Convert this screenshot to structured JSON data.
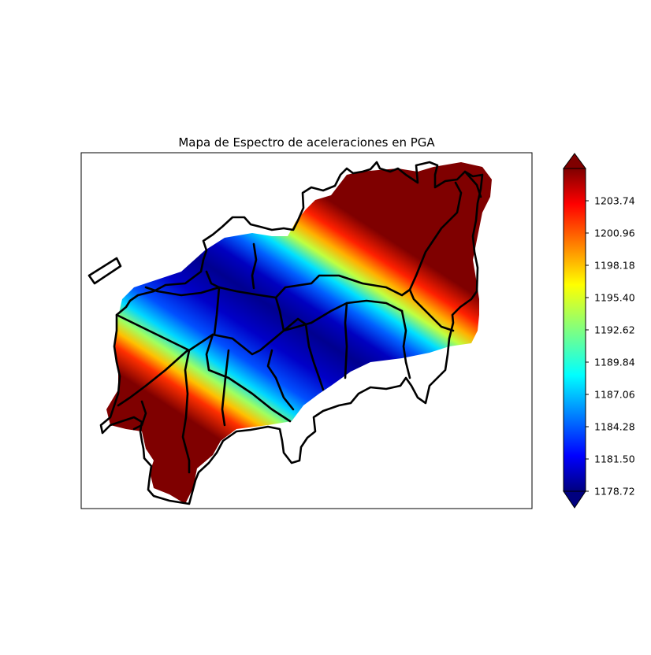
{
  "chart_data": {
    "type": "heatmap",
    "title": "Mapa de Espectro de aceleraciones en PGA",
    "colormap": "jet",
    "colorbar": {
      "ticks": [
        "1178.72",
        "1181.50",
        "1184.28",
        "1187.06",
        "1189.84",
        "1192.62",
        "1195.40",
        "1198.18",
        "1200.96",
        "1203.74"
      ],
      "min": 1178.72,
      "max": 1206.52,
      "extend": "both",
      "location": "right"
    },
    "axes_ticks_visible": false,
    "overlay": "district boundaries (black outlines)"
  }
}
